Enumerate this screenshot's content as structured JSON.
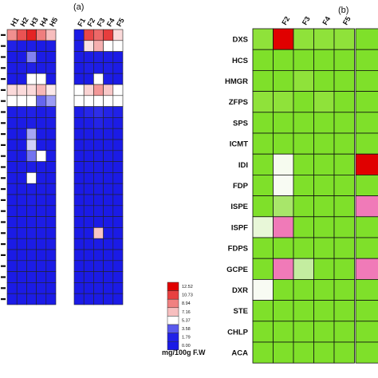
{
  "panel_a": {
    "label": "(a)",
    "group1_columns": [
      "H1",
      "H2",
      "H3",
      "H4",
      "H5"
    ],
    "group2_columns": [
      "F1",
      "F2",
      "F3",
      "F4",
      "F5"
    ],
    "row_count": 25,
    "group1_values": [
      [
        8.5,
        10.2,
        11.5,
        9.0,
        7.2
      ],
      [
        1.8,
        1.2,
        1.5,
        1.0,
        1.4
      ],
      [
        1.0,
        0.8,
        4.2,
        1.2,
        1.0
      ],
      [
        1.2,
        1.4,
        1.6,
        1.3,
        1.5
      ],
      [
        1.0,
        1.1,
        5.37,
        5.37,
        1.0
      ],
      [
        6.4,
        6.4,
        6.4,
        7.4,
        6.0
      ],
      [
        5.37,
        5.37,
        5.37,
        3.8,
        4.5
      ],
      [
        1.4,
        1.6,
        1.8,
        1.3,
        1.7
      ],
      [
        1.2,
        1.3,
        1.5,
        1.2,
        1.4
      ],
      [
        1.1,
        1.3,
        4.6,
        1.2,
        1.0
      ],
      [
        1.0,
        1.0,
        5.0,
        1.3,
        1.0
      ],
      [
        1.2,
        1.1,
        4.0,
        5.37,
        1.2
      ],
      [
        1.0,
        1.2,
        1.4,
        1.2,
        1.1
      ],
      [
        1.1,
        1.0,
        5.37,
        1.2,
        1.0
      ],
      [
        1.2,
        1.1,
        1.4,
        1.3,
        1.2
      ],
      [
        1.0,
        1.2,
        1.5,
        1.3,
        1.1
      ],
      [
        1.1,
        1.0,
        1.3,
        1.2,
        1.0
      ],
      [
        1.0,
        1.1,
        1.2,
        1.4,
        1.1
      ],
      [
        1.1,
        1.2,
        1.4,
        1.2,
        1.0
      ],
      [
        1.0,
        1.1,
        1.3,
        1.2,
        1.2
      ],
      [
        1.1,
        1.0,
        1.2,
        1.1,
        1.0
      ],
      [
        1.0,
        1.2,
        1.3,
        1.2,
        1.1
      ],
      [
        1.1,
        1.1,
        1.2,
        1.1,
        1.0
      ],
      [
        1.0,
        1.0,
        1.1,
        1.2,
        1.1
      ],
      [
        1.1,
        1.0,
        1.2,
        1.1,
        1.0
      ]
    ],
    "group2_values": [
      [
        0.9,
        10.5,
        9.6,
        10.8,
        6.4
      ],
      [
        1.4,
        6.2,
        7.6,
        5.37,
        5.37
      ],
      [
        1.2,
        1.3,
        1.5,
        1.2,
        1.0
      ],
      [
        1.1,
        1.6,
        1.4,
        1.5,
        1.2
      ],
      [
        1.0,
        1.1,
        5.37,
        1.2,
        1.1
      ],
      [
        5.37,
        6.6,
        8.3,
        6.9,
        5.37
      ],
      [
        5.37,
        5.37,
        5.37,
        5.37,
        5.37
      ],
      [
        1.5,
        2.2,
        2.5,
        2.0,
        1.8
      ],
      [
        1.2,
        1.4,
        2.0,
        1.5,
        1.3
      ],
      [
        1.1,
        1.3,
        1.4,
        1.2,
        1.0
      ],
      [
        1.0,
        1.2,
        1.3,
        1.3,
        1.0
      ],
      [
        1.1,
        1.1,
        1.2,
        1.2,
        1.1
      ],
      [
        1.0,
        1.2,
        1.3,
        1.1,
        1.0
      ],
      [
        1.1,
        1.1,
        1.2,
        1.1,
        1.0
      ],
      [
        1.0,
        1.1,
        1.2,
        1.1,
        1.1
      ],
      [
        1.1,
        1.0,
        1.1,
        1.0,
        1.0
      ],
      [
        1.0,
        1.1,
        1.2,
        1.1,
        1.0
      ],
      [
        1.1,
        1.0,
        1.1,
        1.0,
        1.1
      ],
      [
        1.0,
        1.1,
        7.0,
        1.1,
        1.0
      ],
      [
        1.1,
        1.0,
        1.2,
        1.1,
        1.0
      ],
      [
        1.0,
        1.1,
        1.1,
        1.0,
        1.1
      ],
      [
        1.1,
        1.0,
        1.2,
        1.1,
        1.0
      ],
      [
        1.0,
        1.1,
        1.1,
        1.0,
        1.0
      ],
      [
        1.1,
        1.0,
        1.2,
        1.1,
        1.1
      ],
      [
        1.0,
        1.1,
        1.1,
        1.0,
        1.0
      ]
    ]
  },
  "legend": {
    "ticks": [
      "12.52",
      "10.73",
      "8.94",
      "7.16",
      "5.37",
      "3.58",
      "1.79",
      "0.00"
    ],
    "unit": "mg/100g F.W",
    "low_color": "#1a1ae6",
    "mid_color": "#ffffff",
    "high_color": "#e00000"
  },
  "panel_b": {
    "label": "(b)",
    "columns": [
      "F2",
      "F3",
      "F4",
      "F5"
    ],
    "genes": [
      "DXS",
      "HCS",
      "HMGR",
      "ZFPS",
      "SPS",
      "ICMT",
      "IDI",
      "FDP",
      "ISPE",
      "ISPF",
      "FDPS",
      "GCPE",
      "DXR",
      "STE",
      "CHLP",
      "ACA"
    ],
    "cell_colors": [
      [
        "#e00000",
        "#8fe23a",
        "#8fe23a",
        "#8fe23a"
      ],
      [
        "#7fe02a",
        "#7fe02a",
        "#7fe02a",
        "#7fe02a"
      ],
      [
        "#7fe02a",
        "#8fe23a",
        "#7fe02a",
        "#7fe02a"
      ],
      [
        "#8fe23a",
        "#7fe02a",
        "#8fe23a",
        "#7fe02a"
      ],
      [
        "#7fe02a",
        "#7fe02a",
        "#7fe02a",
        "#7fe02a"
      ],
      [
        "#7fe02a",
        "#7fe02a",
        "#7fe02a",
        "#7fe02a"
      ],
      [
        "#f6fbef",
        "#7fe02a",
        "#7fe02a",
        "#7fe02a"
      ],
      [
        "#f8fbf3",
        "#7fe02a",
        "#7fe02a",
        "#7fe02a"
      ],
      [
        "#a8e66a",
        "#7fe02a",
        "#7fe02a",
        "#7fe02a"
      ],
      [
        "#f07ab8",
        "#7fe02a",
        "#7fe02a",
        "#7fe02a"
      ],
      [
        "#7fe02a",
        "#7fe02a",
        "#7fe02a",
        "#7fe02a"
      ],
      [
        "#f07ab8",
        "#c4eda0",
        "#7fe02a",
        "#7fe02a"
      ],
      [
        "#7fe02a",
        "#7fe02a",
        "#7fe02a",
        "#7fe02a"
      ],
      [
        "#7fe02a",
        "#7fe02a",
        "#7fe02a",
        "#7fe02a"
      ],
      [
        "#7fe02a",
        "#7fe02a",
        "#7fe02a",
        "#7fe02a"
      ],
      [
        "#7fe02a",
        "#7fe02a",
        "#7fe02a",
        "#7fe02a"
      ]
    ],
    "first_col_colors": [
      "#8fe23a",
      "#7fe02a",
      "#7fe02a",
      "#8fe23a",
      "#7fe02a",
      "#7fe02a",
      "#7fe02a",
      "#7fe02a",
      "#7fe02a",
      "#e8f7d8",
      "#7fe02a",
      "#7fe02a",
      "#f8fbf3",
      "#7fe02a",
      "#7fe02a",
      "#7fe02a"
    ]
  },
  "panel_c_partial": {
    "label": "(b",
    "cell_colors": [
      "#7fe02a",
      "#7fe02a",
      "#7fe02a",
      "#7fe02a",
      "#7fe02a",
      "#7fe02a",
      "#e00000",
      "#7fe02a",
      "#f07ab8",
      "#7fe02a",
      "#7fe02a",
      "#f07ab8",
      "#7fe02a",
      "#7fe02a",
      "#7fe02a",
      "#7fe02a"
    ]
  }
}
